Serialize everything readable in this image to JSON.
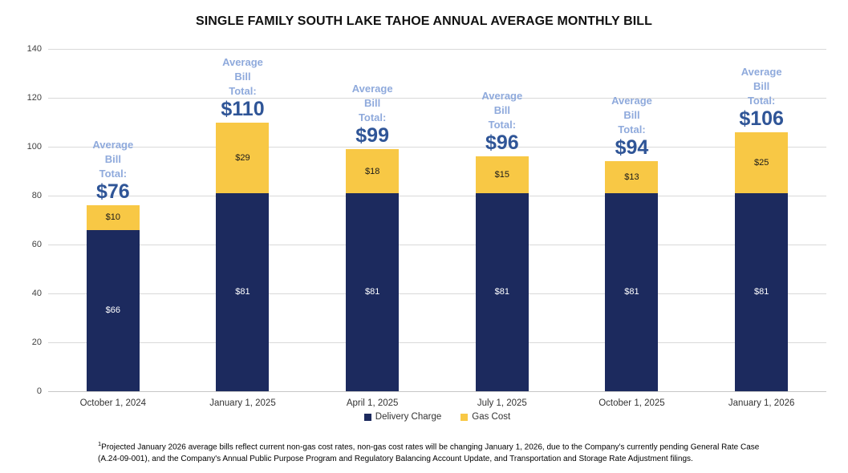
{
  "title": "SINGLE FAMILY SOUTH LAKE TAHOE ANNUAL AVERAGE MONTHLY BILL",
  "chart_data": {
    "type": "bar",
    "stacked": true,
    "title": "SINGLE FAMILY SOUTH LAKE TAHOE ANNUAL AVERAGE MONTHLY BILL",
    "categories": [
      "October 1, 2024",
      "January 1, 2025",
      "April 1, 2025",
      "July 1, 2025",
      "October 1, 2025",
      "January 1, 2026"
    ],
    "series": [
      {
        "name": "Delivery Charge",
        "color": "#1C2A5E",
        "values": [
          66,
          81,
          81,
          81,
          81,
          81
        ],
        "labels": [
          "$66",
          "$81",
          "$81",
          "$81",
          "$81",
          "$81"
        ]
      },
      {
        "name": "Gas Cost",
        "color": "#F8C845",
        "values": [
          10,
          29,
          18,
          15,
          13,
          25
        ],
        "labels": [
          "$10",
          "$29",
          "$18",
          "$15",
          "$13",
          "$25"
        ]
      }
    ],
    "totals": [
      76,
      110,
      99,
      96,
      94,
      106
    ],
    "total_labels": [
      "$76",
      "$110",
      "$99",
      "$96",
      "$94",
      "$106"
    ],
    "annotation_prefix": [
      "Average",
      "Bill",
      "Total:"
    ],
    "xlabel": "",
    "ylabel": "",
    "ylim": [
      0,
      140
    ],
    "yticks": [
      0,
      20,
      40,
      60,
      80,
      100,
      120,
      140
    ],
    "grid": true,
    "legend_position": "bottom"
  },
  "legend": {
    "items": [
      {
        "label": "Delivery Charge",
        "color": "#1C2A5E"
      },
      {
        "label": "Gas Cost",
        "color": "#F8C845"
      }
    ]
  },
  "footnote": {
    "superscript": "1",
    "text": "Projected January 2026 average bills reflect current non-gas cost rates, non-gas cost rates will be changing January 1, 2026, due to the Company's currently pending General Rate Case (A.24-09-001), and the Company's Annual Public Purpose Program and Regulatory Balancing Account Update, and Transportation and Storage Rate Adjustment filings."
  },
  "colors": {
    "delivery_charge": "#1C2A5E",
    "gas_cost": "#F8C845",
    "average_bill_label": "#8FAADC",
    "average_bill_total": "#2F5597",
    "gridline": "#D9D9D9",
    "axis_text": "#404040",
    "title_text": "#111111"
  }
}
